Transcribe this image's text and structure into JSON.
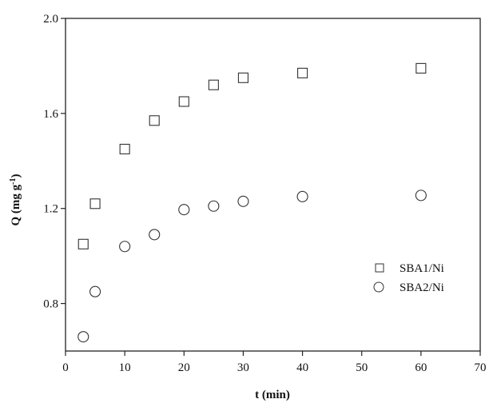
{
  "chart_data": {
    "type": "scatter",
    "title": "",
    "xlabel": "t (min)",
    "ylabel_main": "Q (mg g",
    "ylabel_sup": "-1",
    "ylabel_close": ")",
    "xlim": [
      0,
      70
    ],
    "ylim": [
      0.6,
      2.0
    ],
    "xticks": [
      0,
      10,
      20,
      30,
      40,
      50,
      60,
      70
    ],
    "xtick_labels": [
      "0",
      "10",
      "20",
      "30",
      "40",
      "50",
      "60",
      "70"
    ],
    "yticks": [
      0.8,
      1.2,
      1.6,
      2.0
    ],
    "ytick_labels": [
      "0.8",
      "1.2",
      "1.6",
      "2.0"
    ],
    "grid": false,
    "legend_position": "right",
    "series": [
      {
        "name": "SBA1/Ni",
        "marker": "square",
        "x": [
          3,
          5,
          10,
          15,
          20,
          25,
          30,
          40,
          60
        ],
        "y": [
          1.05,
          1.22,
          1.45,
          1.57,
          1.65,
          1.72,
          1.75,
          1.77,
          1.79
        ]
      },
      {
        "name": "SBA2/Ni",
        "marker": "circle",
        "x": [
          3,
          5,
          10,
          15,
          20,
          25,
          30,
          40,
          60
        ],
        "y": [
          0.66,
          0.85,
          1.04,
          1.09,
          1.195,
          1.21,
          1.23,
          1.25,
          1.255
        ]
      }
    ]
  }
}
